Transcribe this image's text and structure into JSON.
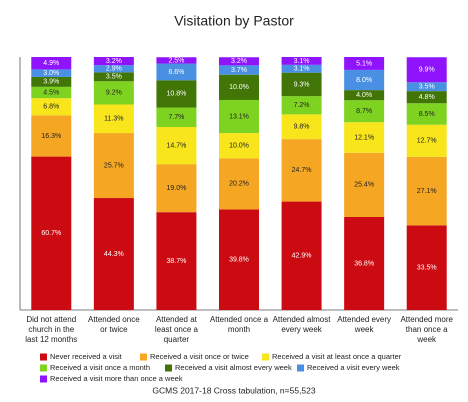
{
  "chart_data": {
    "type": "stacked-bar",
    "title": "Visitation by Pastor",
    "categories": [
      "Did not attend church in the last 12 months",
      "Attended once or twice",
      "Attended at least once a quarter",
      "Attended once a month",
      "Attended almost every week",
      "Attended every week",
      "Attended more than once a week"
    ],
    "series": [
      {
        "name": "Never received a visit",
        "color": "#cc0a12",
        "values": [
          60.7,
          44.3,
          38.7,
          39.8,
          42.9,
          36.8,
          33.5
        ],
        "value_labels": [
          "60.7%",
          "44.3%",
          "38.7%",
          "39.8%",
          "42.9%",
          "36.8%",
          "33.5%"
        ]
      },
      {
        "name": "Received a visit once or twice",
        "color": "#f5a623",
        "values": [
          16.3,
          25.7,
          19.0,
          20.2,
          24.7,
          25.4,
          27.1
        ],
        "value_labels": [
          "16.3%",
          "25.7%",
          "19.0%",
          "20.2%",
          "24.7%",
          "25.4%",
          "27.1%"
        ]
      },
      {
        "name": "Received a visit at least once a quarter",
        "color": "#f8e51c",
        "values": [
          6.8,
          11.3,
          14.7,
          10.0,
          9.8,
          12.1,
          12.7
        ],
        "value_labels": [
          "6.8%",
          "11.3%",
          "14.7%",
          "10.0%",
          "9.8%",
          "12.1%",
          "12.7%"
        ]
      },
      {
        "name": "Received a visit once a month",
        "color": "#7ed321",
        "values": [
          4.5,
          9.2,
          7.7,
          13.1,
          7.2,
          8.7,
          8.5
        ],
        "value_labels": [
          "4.5%",
          "9.2%",
          "7.7%",
          "13.1%",
          "7.2%",
          "8.7%",
          "8.5%"
        ]
      },
      {
        "name": "Received a visit almost every week",
        "color": "#417505",
        "values": [
          3.9,
          3.5,
          10.8,
          10.0,
          9.3,
          4.0,
          4.8
        ],
        "value_labels": [
          "3.9%",
          "3.5%",
          "10.8%",
          "10.0%",
          "9.3%",
          "4.0%",
          "4.8%"
        ]
      },
      {
        "name": "Received a visit every week",
        "color": "#4a90e2",
        "values": [
          3.0,
          2.9,
          6.6,
          3.7,
          3.1,
          8.0,
          3.5
        ],
        "value_labels": [
          "3.0%",
          "2.9%",
          "6.6%",
          "3.7%",
          "3.1%",
          "8.0%",
          "3.5%"
        ]
      },
      {
        "name": "Received a visit more than once a week",
        "color": "#9013fe",
        "values": [
          4.9,
          3.2,
          2.5,
          3.2,
          3.1,
          5.1,
          9.9
        ],
        "value_labels": [
          "4.9%",
          "3.2%",
          "2.5%",
          "3.2%",
          "3.1%",
          "5.1%",
          "9.9%"
        ]
      }
    ],
    "footnote": "GCMS 2017-18 Cross tabulation, n=55,523"
  }
}
